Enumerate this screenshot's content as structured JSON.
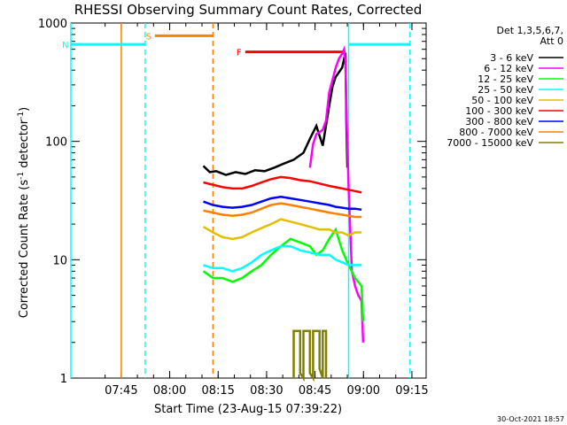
{
  "chart_data": {
    "type": "line",
    "title": "RHESSI Observing Summary Count Rates, Corrected",
    "xlabel": "Start Time (23-Aug-15 07:39:22)",
    "ylabel_parts": [
      "Corrected Count Rate (s",
      "-1",
      " detector",
      "-1",
      ")"
    ],
    "y_scale": "log",
    "ylim": [
      1,
      1000
    ],
    "xlim_minutes": [
      -10,
      100
    ],
    "x_ticks": [
      {
        "label": "07:45",
        "min": 5.6
      },
      {
        "label": "08:00",
        "min": 20.6
      },
      {
        "label": "08:15",
        "min": 35.6
      },
      {
        "label": "08:30",
        "min": 50.6
      },
      {
        "label": "08:45",
        "min": 65.6
      },
      {
        "label": "09:00",
        "min": 80.6
      },
      {
        "label": "09:15",
        "min": 95.6
      }
    ],
    "y_ticks": [
      {
        "label": "1",
        "value": 1
      },
      {
        "label": "10",
        "value": 10
      },
      {
        "label": "100",
        "value": 100
      },
      {
        "label": "1000",
        "value": 1000
      }
    ],
    "legend_header": [
      "Det 1,3,5,6,7,",
      "Att 0"
    ],
    "legend_position": "right",
    "series": [
      {
        "name": "3 - 6 keV",
        "color": "#000000",
        "points": [
          [
            31,
            62
          ],
          [
            33,
            55
          ],
          [
            35,
            56
          ],
          [
            38,
            52
          ],
          [
            41,
            55
          ],
          [
            44,
            53
          ],
          [
            47,
            57
          ],
          [
            50,
            56
          ],
          [
            53,
            60
          ],
          [
            56,
            65
          ],
          [
            59,
            70
          ],
          [
            62,
            80
          ],
          [
            64,
            105
          ],
          [
            66,
            135
          ],
          [
            68,
            92
          ],
          [
            70,
            200
          ],
          [
            71,
            290
          ],
          [
            72,
            350
          ],
          [
            74,
            420
          ],
          [
            75,
            560
          ],
          [
            75.3,
            140
          ],
          [
            75.6,
            60
          ]
        ]
      },
      {
        "name": "6 - 12 keV",
        "color": "#ff00ff",
        "points": [
          [
            64,
            60
          ],
          [
            65,
            95
          ],
          [
            66,
            115
          ],
          [
            68,
            125
          ],
          [
            69,
            150
          ],
          [
            70,
            260
          ],
          [
            71,
            330
          ],
          [
            72,
            420
          ],
          [
            73,
            500
          ],
          [
            74,
            550
          ],
          [
            74.6,
            600
          ],
          [
            75,
            480
          ],
          [
            75.4,
            150
          ],
          [
            76,
            40
          ],
          [
            77,
            8
          ],
          [
            78,
            6
          ],
          [
            79,
            5
          ],
          [
            80,
            4.5
          ],
          [
            80.5,
            2
          ]
        ]
      },
      {
        "name": "12 - 25 keV",
        "color": "#00ff00",
        "points": [
          [
            31,
            8
          ],
          [
            34,
            7
          ],
          [
            37,
            7
          ],
          [
            40,
            6.5
          ],
          [
            43,
            7
          ],
          [
            46,
            8
          ],
          [
            49,
            9
          ],
          [
            52,
            11
          ],
          [
            55,
            13
          ],
          [
            58,
            15
          ],
          [
            61,
            14
          ],
          [
            64,
            13
          ],
          [
            66,
            11
          ],
          [
            68,
            12
          ],
          [
            70,
            15
          ],
          [
            72,
            18
          ],
          [
            74,
            12
          ],
          [
            76,
            9
          ],
          [
            78,
            7
          ],
          [
            80,
            6
          ],
          [
            80.5,
            3
          ]
        ]
      },
      {
        "name": "25 - 50 keV",
        "color": "#00ffff",
        "points": [
          [
            31,
            9
          ],
          [
            34,
            8.5
          ],
          [
            37,
            8.5
          ],
          [
            40,
            8
          ],
          [
            43,
            8.5
          ],
          [
            46,
            9.5
          ],
          [
            49,
            11
          ],
          [
            52,
            12
          ],
          [
            55,
            13
          ],
          [
            58,
            13
          ],
          [
            61,
            12
          ],
          [
            64,
            11.5
          ],
          [
            67,
            11
          ],
          [
            70,
            11
          ],
          [
            72,
            10
          ],
          [
            74,
            9.5
          ],
          [
            76,
            9
          ],
          [
            78,
            9
          ],
          [
            80,
            9
          ]
        ]
      },
      {
        "name": "50 - 100 keV",
        "color": "#e0c000",
        "points": [
          [
            31,
            19
          ],
          [
            34,
            17
          ],
          [
            37,
            15.5
          ],
          [
            40,
            15
          ],
          [
            43,
            15.5
          ],
          [
            46,
            17
          ],
          [
            49,
            18.5
          ],
          [
            52,
            20
          ],
          [
            55,
            22
          ],
          [
            58,
            21
          ],
          [
            61,
            20
          ],
          [
            64,
            19
          ],
          [
            67,
            18
          ],
          [
            70,
            18
          ],
          [
            72,
            17
          ],
          [
            74,
            17
          ],
          [
            76,
            16
          ],
          [
            78,
            17
          ],
          [
            80,
            17
          ]
        ]
      },
      {
        "name": "100 - 300 keV",
        "color": "#ff0000",
        "points": [
          [
            31,
            45
          ],
          [
            34,
            43
          ],
          [
            37,
            41
          ],
          [
            40,
            40
          ],
          [
            43,
            40
          ],
          [
            46,
            42
          ],
          [
            49,
            45
          ],
          [
            52,
            48
          ],
          [
            55,
            50
          ],
          [
            58,
            49
          ],
          [
            61,
            47
          ],
          [
            64,
            46
          ],
          [
            67,
            44
          ],
          [
            70,
            42
          ],
          [
            72,
            41
          ],
          [
            74,
            40
          ],
          [
            76,
            39
          ],
          [
            78,
            38
          ],
          [
            80,
            37
          ]
        ]
      },
      {
        "name": "300 - 800 keV",
        "color": "#0000ff",
        "points": [
          [
            31,
            31
          ],
          [
            34,
            29
          ],
          [
            37,
            28
          ],
          [
            40,
            27.5
          ],
          [
            43,
            28
          ],
          [
            46,
            29
          ],
          [
            49,
            31
          ],
          [
            52,
            33
          ],
          [
            55,
            34
          ],
          [
            58,
            33
          ],
          [
            61,
            32
          ],
          [
            64,
            31
          ],
          [
            67,
            30
          ],
          [
            70,
            29
          ],
          [
            72,
            28
          ],
          [
            74,
            27.5
          ],
          [
            76,
            27
          ],
          [
            78,
            27
          ],
          [
            80,
            26.5
          ]
        ]
      },
      {
        "name": "800 - 7000 keV",
        "color": "#ff8000",
        "points": [
          [
            31,
            26
          ],
          [
            34,
            25
          ],
          [
            37,
            24
          ],
          [
            40,
            23.5
          ],
          [
            43,
            24
          ],
          [
            46,
            25
          ],
          [
            49,
            27
          ],
          [
            52,
            29
          ],
          [
            55,
            30
          ],
          [
            58,
            29
          ],
          [
            61,
            28
          ],
          [
            64,
            27
          ],
          [
            67,
            26
          ],
          [
            70,
            25
          ],
          [
            72,
            24.5
          ],
          [
            74,
            24
          ],
          [
            76,
            23.5
          ],
          [
            78,
            23
          ],
          [
            80,
            23
          ]
        ]
      },
      {
        "name": "7000 - 15000 keV",
        "color": "#808000",
        "points": [
          [
            59,
            1
          ],
          [
            59,
            2.5
          ],
          [
            61,
            2.5
          ],
          [
            61,
            1.1
          ],
          [
            62,
            1
          ],
          [
            62,
            2.5
          ],
          [
            64,
            2.5
          ],
          [
            64,
            1.1
          ],
          [
            65,
            1
          ],
          [
            65,
            2.5
          ],
          [
            67,
            2.5
          ],
          [
            67,
            1.2
          ],
          [
            68,
            1
          ],
          [
            68,
            2.5
          ],
          [
            69,
            2.5
          ],
          [
            69,
            1
          ]
        ]
      }
    ],
    "annotations": [
      {
        "label": "S",
        "color": "#ff8000",
        "x_min": [
          16,
          34
        ],
        "y": 780
      },
      {
        "label": "N",
        "color": "#00ffff",
        "x_min": [
          -10,
          13
        ],
        "y": 660
      },
      {
        "label": "F",
        "color": "#ff0000",
        "x_min": [
          44,
          75
        ],
        "y": 570
      },
      {
        "label": "",
        "color": "#00ffff",
        "x_min": [
          76,
          95
        ],
        "y": 660
      }
    ],
    "vertical_markers": [
      {
        "min": -10,
        "color": "#00ffff",
        "style": "solid"
      },
      {
        "min": 5.6,
        "color": "#ff8000",
        "style": "solid"
      },
      {
        "min": 13,
        "color": "#00ffff",
        "style": "dashed"
      },
      {
        "min": 34,
        "color": "#ff8000",
        "style": "dashed"
      },
      {
        "min": 76,
        "color": "#00ffff",
        "style": "solid"
      },
      {
        "min": 95,
        "color": "#00ffff",
        "style": "dashed"
      }
    ]
  },
  "timestamp": "30-Oct-2021 18:57"
}
